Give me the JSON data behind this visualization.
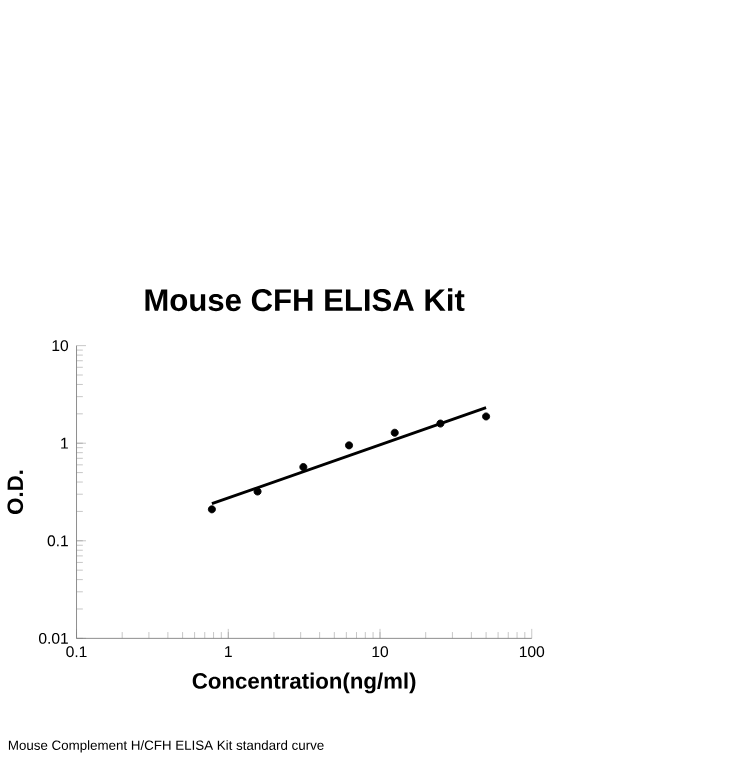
{
  "chart_data": {
    "type": "scatter",
    "title": "Mouse CFH ELISA Kit",
    "xlabel": "Concentration(ng/ml)",
    "ylabel": "O.D.",
    "annotations": [
      "Mouse Complement H/CFH ELISA Kit standard curve"
    ],
    "log": "xy",
    "xlim": [
      0.1,
      100
    ],
    "ylim": [
      0.01,
      10
    ],
    "xticks": [
      0.1,
      1,
      10,
      100
    ],
    "yticks": [
      0.01,
      0.1,
      1,
      10
    ],
    "grid": false,
    "series": [
      {
        "color": "#000000",
        "marker": "circle",
        "x": [
          0.78,
          1.56,
          3.125,
          6.25,
          12.5,
          25,
          50
        ],
        "values": [
          0.21,
          0.32,
          0.57,
          0.95,
          1.28,
          1.59,
          1.88
        ]
      },
      {
        "type": "line",
        "color": "#000000",
        "marker": "none",
        "line_style": "solid",
        "x": [
          0.78,
          50
        ],
        "values": [
          0.24,
          2.32
        ]
      }
    ]
  }
}
